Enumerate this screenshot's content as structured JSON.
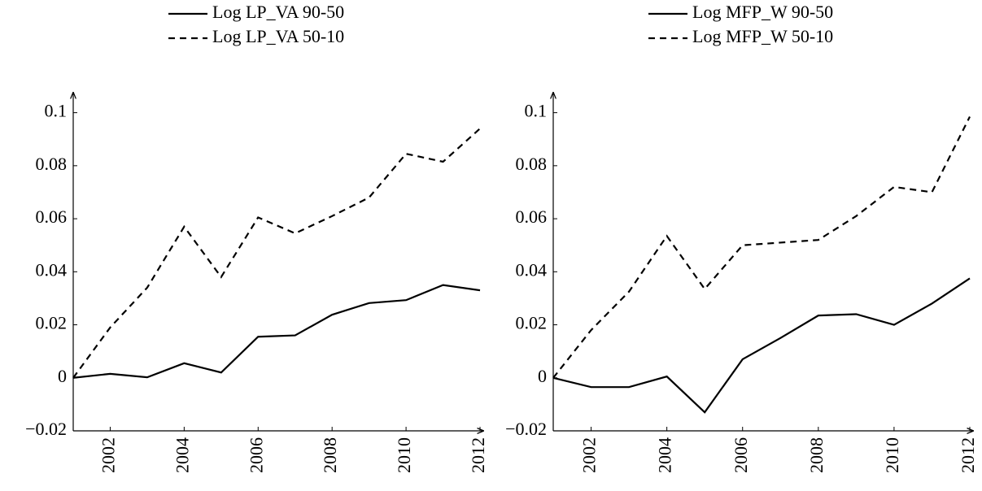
{
  "chart_data": [
    {
      "type": "line",
      "x": [
        2001,
        2002,
        2003,
        2004,
        2005,
        2006,
        2007,
        2008,
        2009,
        2010,
        2011,
        2012
      ],
      "series": [
        {
          "name": "Log LP_VA 90-50",
          "color": "#000000",
          "line_style": "solid",
          "values": [
            0,
            0.0015,
            0.0002,
            0.0055,
            0.002,
            0.0155,
            0.016,
            0.0238,
            0.0282,
            0.0293,
            0.035,
            0.033
          ]
        },
        {
          "name": "Log LP_VA 50-10",
          "color": "#000000",
          "line_style": "dashed",
          "values": [
            0,
            0.019,
            0.034,
            0.057,
            0.038,
            0.0605,
            0.0545,
            0.061,
            0.068,
            0.0845,
            0.0815,
            0.094
          ]
        }
      ],
      "xlim": [
        2001,
        2012
      ],
      "xticks": [
        2002,
        2004,
        2006,
        2008,
        2010,
        2012
      ],
      "ylim": [
        -0.02,
        0.11
      ],
      "yticks": [
        {
          "value": -0.02,
          "label": "−0.02"
        },
        0,
        0.02,
        0.04,
        0.06,
        0.08,
        0.1
      ],
      "grid": false,
      "legend": "top"
    },
    {
      "type": "line",
      "x": [
        2001,
        2002,
        2003,
        2004,
        2005,
        2006,
        2007,
        2008,
        2009,
        2010,
        2011,
        2012
      ],
      "series": [
        {
          "name": "Log MFP_W 90-50",
          "color": "#000000",
          "line_style": "solid",
          "values": [
            0,
            -0.0035,
            -0.0035,
            0.0005,
            -0.013,
            0.007,
            0.015,
            0.0235,
            0.024,
            0.02,
            0.028,
            0.0375
          ]
        },
        {
          "name": "Log MFP_W 50-10",
          "color": "#000000",
          "line_style": "dashed",
          "values": [
            0,
            0.018,
            0.0325,
            0.0535,
            0.0335,
            0.05,
            0.051,
            0.052,
            0.061,
            0.072,
            0.07,
            0.0985
          ]
        }
      ],
      "xlim": [
        2001,
        2012
      ],
      "xticks": [
        2002,
        2004,
        2006,
        2008,
        2010,
        2012
      ],
      "ylim": [
        -0.02,
        0.11
      ],
      "yticks": [
        {
          "value": -0.02,
          "label": "−0.02"
        },
        0,
        0.02,
        0.04,
        0.06,
        0.08,
        0.1
      ],
      "grid": false,
      "legend": "top"
    }
  ]
}
